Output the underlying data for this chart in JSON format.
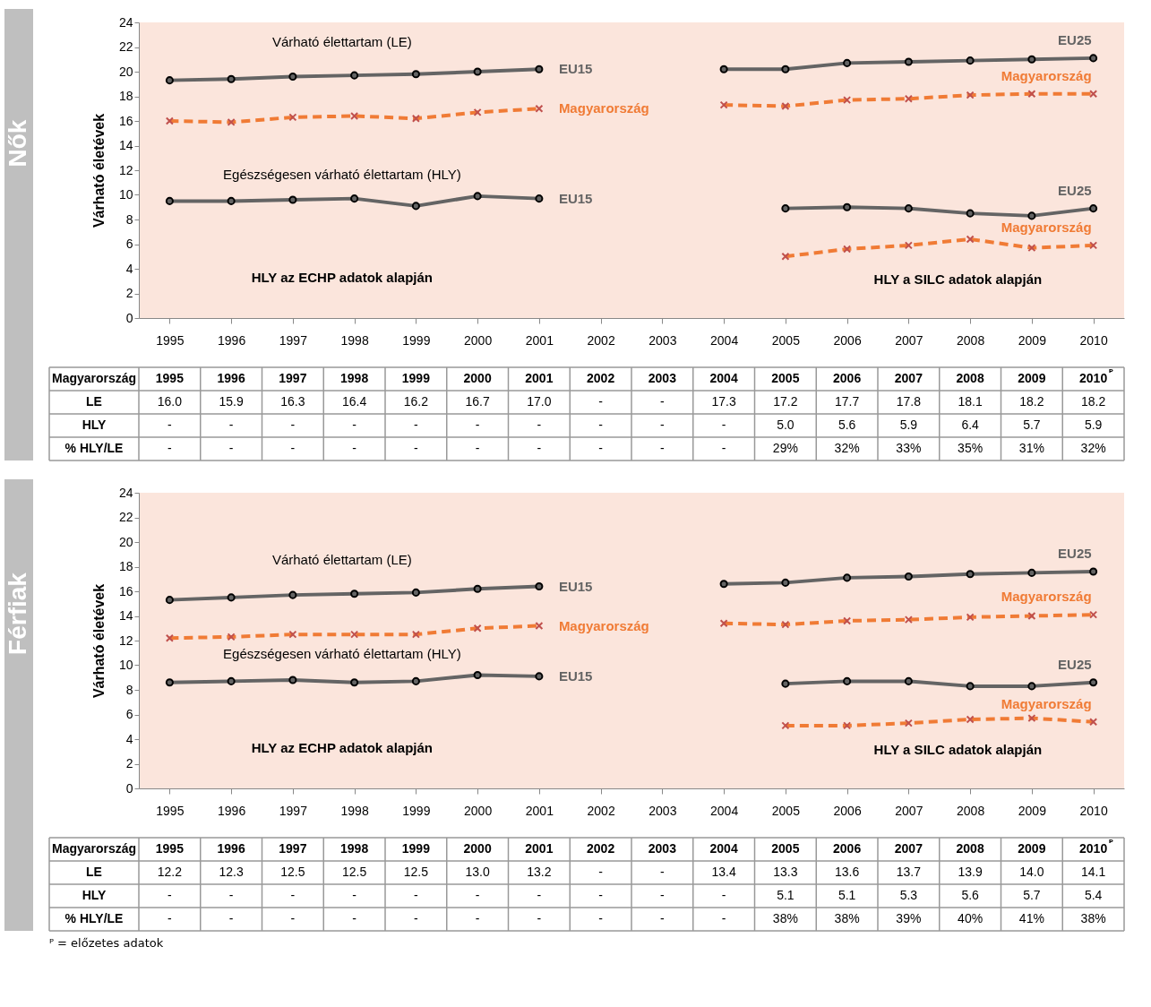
{
  "chart_data": [
    {
      "type": "line",
      "title": "Nők",
      "ylabel": "Várható életévek",
      "legend_title": "Magyarország",
      "categories": [
        "1995",
        "1996",
        "1997",
        "1998",
        "1999",
        "2000",
        "2001",
        "2002",
        "2003",
        "2004",
        "2005",
        "2006",
        "2007",
        "2008",
        "2009",
        "2010"
      ],
      "ylim": [
        0,
        24
      ],
      "yticks": [
        0,
        2,
        4,
        6,
        8,
        10,
        12,
        14,
        16,
        18,
        20,
        22,
        24
      ],
      "series": [
        {
          "name": "EU15",
          "color": "#646464",
          "marker": "circle",
          "line_style": "solid",
          "values": [
            19.3,
            19.4,
            19.6,
            19.7,
            19.8,
            20.0,
            20.2,
            null,
            null,
            null,
            null,
            null,
            null,
            null,
            null,
            null
          ]
        },
        {
          "name": "EU25",
          "color": "#646464",
          "marker": "circle",
          "line_style": "solid",
          "values": [
            null,
            null,
            null,
            null,
            null,
            null,
            null,
            null,
            null,
            20.2,
            20.2,
            20.7,
            20.8,
            20.9,
            21.0,
            21.1
          ]
        },
        {
          "name": "Magyarország",
          "color": "#f07b35",
          "marker": "cross",
          "line_style": "dashed",
          "values": [
            16.0,
            15.9,
            16.3,
            16.4,
            16.2,
            16.7,
            17.0,
            null,
            null,
            17.3,
            17.2,
            17.7,
            17.8,
            18.1,
            18.2,
            18.2
          ],
          "value_labels": [
            "16.0",
            "15.9",
            "16.3",
            "16.4",
            "16.2",
            "16.7",
            "17.0",
            "-",
            "-",
            "17.3",
            "17.2",
            "17.7",
            "17.8",
            "18.1",
            "18.2",
            "18.2"
          ]
        },
        {
          "name": "EU15",
          "color": "#646464",
          "marker": "circle",
          "line_style": "solid",
          "values": [
            9.5,
            9.5,
            9.6,
            9.7,
            9.1,
            9.9,
            9.7,
            null,
            null,
            null,
            null,
            null,
            null,
            null,
            null,
            null
          ]
        },
        {
          "name": "EU25",
          "color": "#646464",
          "marker": "circle",
          "line_style": "solid",
          "values": [
            null,
            null,
            null,
            null,
            null,
            null,
            null,
            null,
            null,
            null,
            8.9,
            9.0,
            8.9,
            8.5,
            8.3,
            8.9
          ]
        },
        {
          "name": "Magyarország",
          "color": "#f07b35",
          "marker": "cross",
          "line_style": "dashed",
          "values": [
            null,
            null,
            null,
            null,
            null,
            null,
            null,
            null,
            null,
            null,
            5.0,
            5.6,
            5.9,
            6.4,
            5.7,
            5.9
          ],
          "value_labels": [
            "-",
            "-",
            "-",
            "-",
            "-",
            "-",
            "-",
            "-",
            "-",
            "-",
            "5.0",
            "5.6",
            "5.9",
            "6.4",
            "5.7",
            "5.9"
          ]
        }
      ],
      "annotations": [
        "LE",
        "HLY",
        "% HLY/LE",
        "ᴾ",
        "Várható élettartam (LE)",
        "Egészségesen várható élettartam (HLY)",
        "HLY az ECHP adatok alapján",
        "HLY a SILC adatok alapján",
        "-",
        "-",
        "-",
        "-",
        "-",
        "-",
        "-",
        "-",
        "-",
        "-",
        "29%",
        "32%",
        "33%",
        "35%",
        "31%",
        "32%"
      ]
    },
    {
      "type": "line",
      "title": "Férfiak",
      "ylabel": "Várható életévek",
      "legend_title": "Magyarország",
      "categories": [
        "1995",
        "1996",
        "1997",
        "1998",
        "1999",
        "2000",
        "2001",
        "2002",
        "2003",
        "2004",
        "2005",
        "2006",
        "2007",
        "2008",
        "2009",
        "2010"
      ],
      "ylim": [
        0,
        24
      ],
      "yticks": [
        0,
        2,
        4,
        6,
        8,
        10,
        12,
        14,
        16,
        18,
        20,
        22,
        24
      ],
      "series": [
        {
          "name": "EU15",
          "color": "#646464",
          "marker": "circle",
          "line_style": "solid",
          "values": [
            15.3,
            15.5,
            15.7,
            15.8,
            15.9,
            16.2,
            16.4,
            null,
            null,
            null,
            null,
            null,
            null,
            null,
            null,
            null
          ]
        },
        {
          "name": "EU25",
          "color": "#646464",
          "marker": "circle",
          "line_style": "solid",
          "values": [
            null,
            null,
            null,
            null,
            null,
            null,
            null,
            null,
            null,
            16.6,
            16.7,
            17.1,
            17.2,
            17.4,
            17.5,
            17.6
          ]
        },
        {
          "name": "Magyarország",
          "color": "#f07b35",
          "marker": "cross",
          "line_style": "dashed",
          "values": [
            12.2,
            12.3,
            12.5,
            12.5,
            12.5,
            13.0,
            13.2,
            null,
            null,
            13.4,
            13.3,
            13.6,
            13.7,
            13.9,
            14.0,
            14.1
          ],
          "value_labels": [
            "12.2",
            "12.3",
            "12.5",
            "12.5",
            "12.5",
            "13.0",
            "13.2",
            "-",
            "-",
            "13.4",
            "13.3",
            "13.6",
            "13.7",
            "13.9",
            "14.0",
            "14.1"
          ]
        },
        {
          "name": "EU15",
          "color": "#646464",
          "marker": "circle",
          "line_style": "solid",
          "values": [
            8.6,
            8.7,
            8.8,
            8.6,
            8.7,
            9.2,
            9.1,
            null,
            null,
            null,
            null,
            null,
            null,
            null,
            null,
            null
          ]
        },
        {
          "name": "EU25",
          "color": "#646464",
          "marker": "circle",
          "line_style": "solid",
          "values": [
            null,
            null,
            null,
            null,
            null,
            null,
            null,
            null,
            null,
            null,
            8.5,
            8.7,
            8.7,
            8.3,
            8.3,
            8.6
          ]
        },
        {
          "name": "Magyarország",
          "color": "#f07b35",
          "marker": "cross",
          "line_style": "dashed",
          "values": [
            null,
            null,
            null,
            null,
            null,
            null,
            null,
            null,
            null,
            null,
            5.1,
            5.1,
            5.3,
            5.6,
            5.7,
            5.4
          ],
          "value_labels": [
            "-",
            "-",
            "-",
            "-",
            "-",
            "-",
            "-",
            "-",
            "-",
            "-",
            "5.1",
            "5.1",
            "5.3",
            "5.6",
            "5.7",
            "5.4"
          ]
        }
      ],
      "annotations": [
        "LE",
        "HLY",
        "% HLY/LE",
        "ᴾ",
        "Várható élettartam (LE)",
        "Egészségesen várható élettartam (HLY)",
        "HLY az ECHP adatok alapján",
        "HLY a SILC adatok alapján",
        "-",
        "-",
        "-",
        "-",
        "-",
        "-",
        "-",
        "-",
        "-",
        "-",
        "38%",
        "38%",
        "39%",
        "40%",
        "41%",
        "38%",
        "ᴾ = előzetes adatok"
      ]
    }
  ]
}
